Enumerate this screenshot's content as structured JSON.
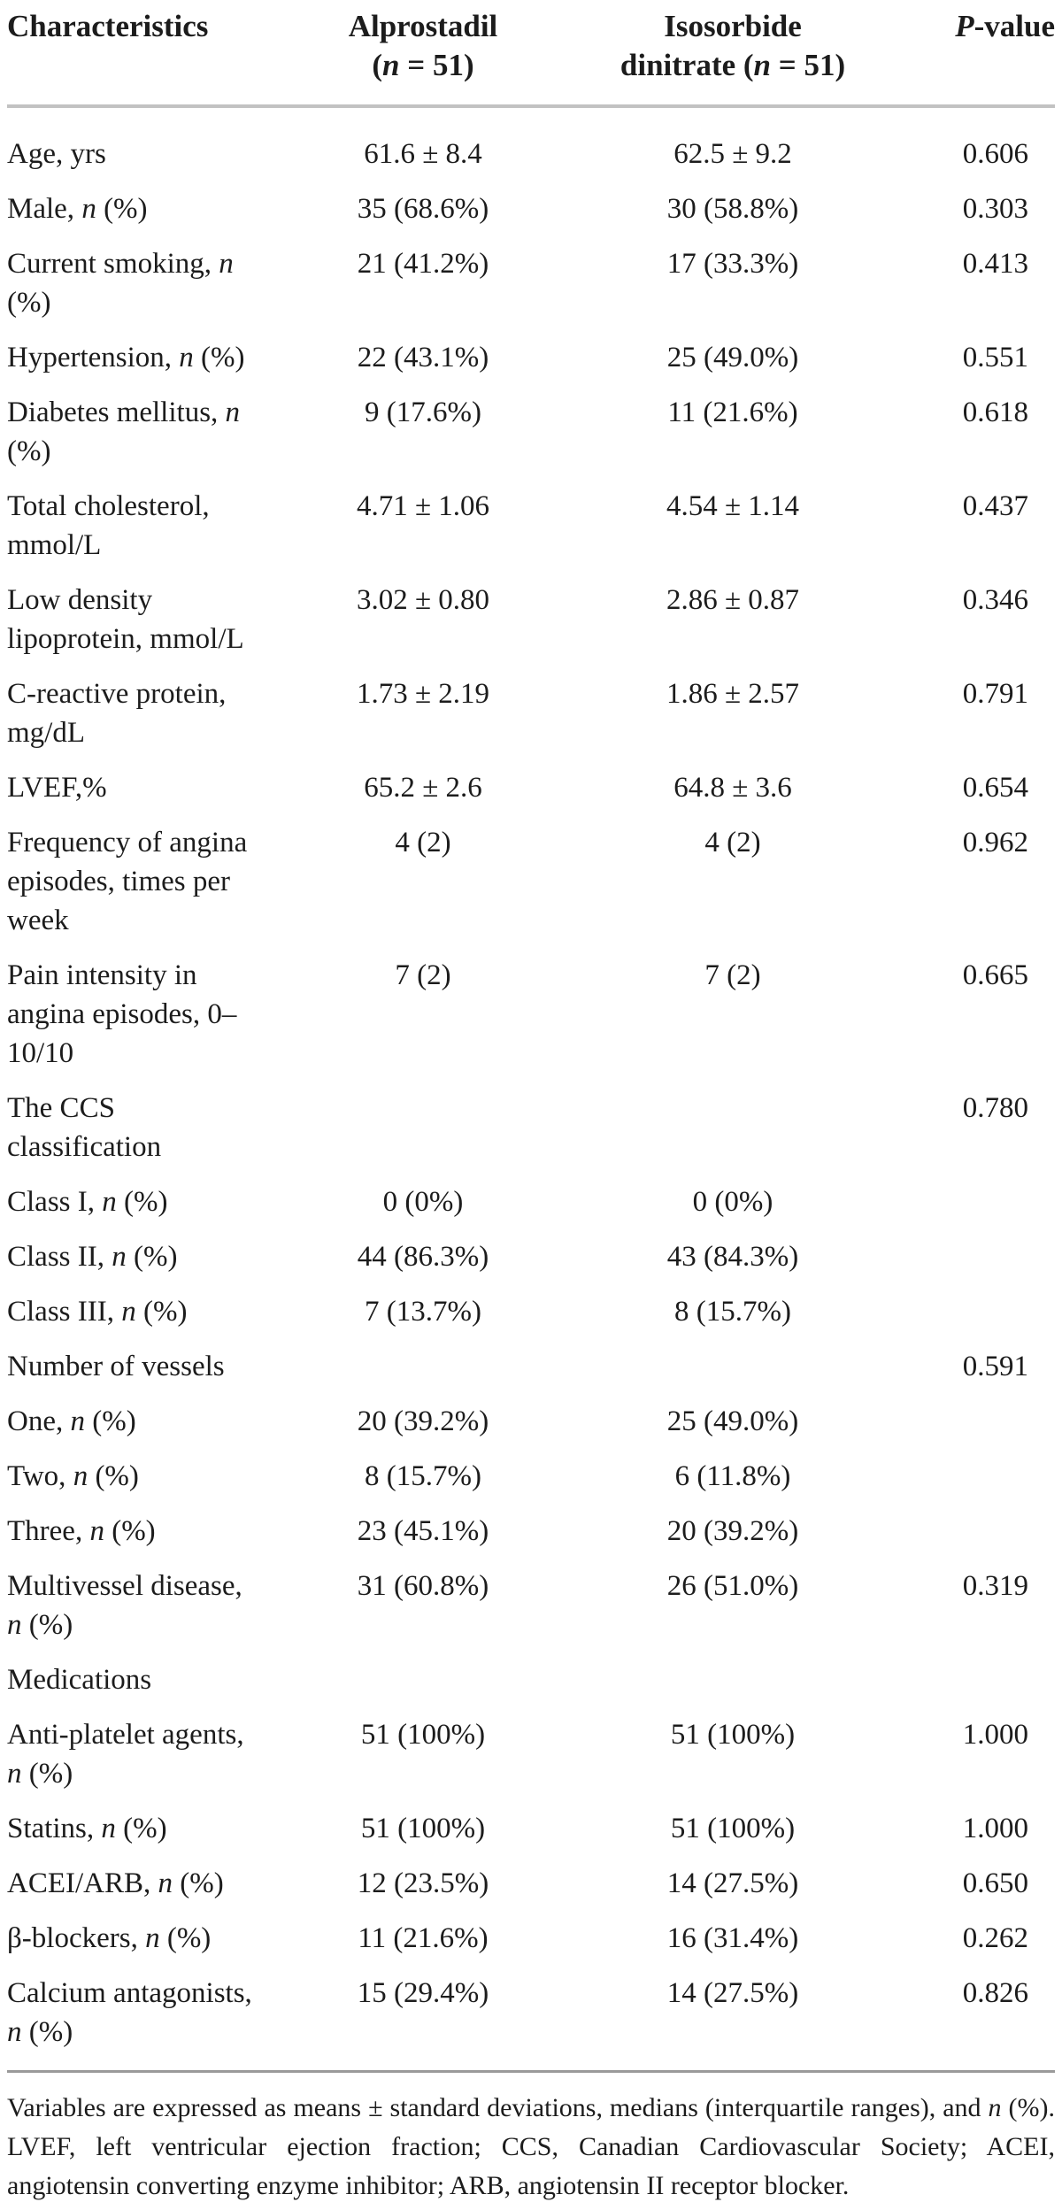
{
  "page": {
    "background": "#ffffff",
    "text_color": "#1c1c1c",
    "rule_color": "#9a9a9a"
  },
  "table": {
    "header": {
      "characteristics": "Characteristics",
      "group1_line1": "Alprostadil",
      "group1_line2": "(*n* = 51)",
      "group2_line1": "Isosorbide",
      "group2_line2": "dinitrate (*n* = 51)",
      "p_value": "*P*-value"
    },
    "rows": [
      {
        "label": "Age, yrs",
        "alprostadil": "61.6 ± 8.4",
        "isosorbide": "62.5 ± 9.2",
        "p": "0.606"
      },
      {
        "label": "Male, *n* (%)",
        "alprostadil": "35 (68.6%)",
        "isosorbide": "30 (58.8%)",
        "p": "0.303"
      },
      {
        "label": "Current smoking, *n* (%)",
        "alprostadil": "21 (41.2%)",
        "isosorbide": "17 (33.3%)",
        "p": "0.413"
      },
      {
        "label": "Hypertension, *n* (%)",
        "alprostadil": "22 (43.1%)",
        "isosorbide": "25 (49.0%)",
        "p": "0.551"
      },
      {
        "label": "Diabetes mellitus, *n* (%)",
        "alprostadil": "9 (17.6%)",
        "isosorbide": "11 (21.6%)",
        "p": "0.618"
      },
      {
        "label": "Total cholesterol, mmol/L",
        "alprostadil": "4.71 ± 1.06",
        "isosorbide": "4.54 ± 1.14",
        "p": "0.437"
      },
      {
        "label": "Low density lipoprotein, mmol/L",
        "alprostadil": "3.02 ± 0.80",
        "isosorbide": "2.86 ± 0.87",
        "p": "0.346"
      },
      {
        "label": "C-reactive protein, mg/dL",
        "alprostadil": "1.73 ± 2.19",
        "isosorbide": "1.86 ± 2.57",
        "p": "0.791"
      },
      {
        "label": "LVEF,%",
        "alprostadil": "65.2 ± 2.6",
        "isosorbide": "64.8 ± 3.6",
        "p": "0.654"
      },
      {
        "label": "Frequency of angina episodes, times per week",
        "alprostadil": "4 (2)",
        "isosorbide": "4 (2)",
        "p": "0.962"
      },
      {
        "label": "Pain intensity in angina episodes, 0–10/10",
        "alprostadil": "7 (2)",
        "isosorbide": "7 (2)",
        "p": "0.665"
      },
      {
        "label": "The CCS classification",
        "alprostadil": "",
        "isosorbide": "",
        "p": "0.780"
      },
      {
        "label": "Class I, *n* (%)",
        "alprostadil": "0 (0%)",
        "isosorbide": "0 (0%)",
        "p": ""
      },
      {
        "label": "Class II, *n* (%)",
        "alprostadil": "44 (86.3%)",
        "isosorbide": "43 (84.3%)",
        "p": ""
      },
      {
        "label": "Class III, *n* (%)",
        "alprostadil": "7 (13.7%)",
        "isosorbide": "8 (15.7%)",
        "p": ""
      },
      {
        "label": "Number of vessels",
        "alprostadil": "",
        "isosorbide": "",
        "p": "0.591"
      },
      {
        "label": "One, *n* (%)",
        "alprostadil": "20 (39.2%)",
        "isosorbide": "25 (49.0%)",
        "p": ""
      },
      {
        "label": "Two, *n* (%)",
        "alprostadil": "8 (15.7%)",
        "isosorbide": "6 (11.8%)",
        "p": ""
      },
      {
        "label": "Three, *n* (%)",
        "alprostadil": "23 (45.1%)",
        "isosorbide": "20 (39.2%)",
        "p": ""
      },
      {
        "label": "Multivessel disease, *n* (%)",
        "alprostadil": "31 (60.8%)",
        "isosorbide": "26 (51.0%)",
        "p": "0.319"
      },
      {
        "label": "Medications",
        "alprostadil": "",
        "isosorbide": "",
        "p": ""
      },
      {
        "label": "Anti-platelet agents, *n* (%)",
        "alprostadil": "51 (100%)",
        "isosorbide": "51 (100%)",
        "p": "1.000"
      },
      {
        "label": "Statins, *n* (%)",
        "alprostadil": "51 (100%)",
        "isosorbide": "51 (100%)",
        "p": "1.000"
      },
      {
        "label": "ACEI/ARB, *n* (%)",
        "alprostadil": "12 (23.5%)",
        "isosorbide": "14 (27.5%)",
        "p": "0.650"
      },
      {
        "label": "β-blockers, *n* (%)",
        "alprostadil": "11 (21.6%)",
        "isosorbide": "16 (31.4%)",
        "p": "0.262"
      },
      {
        "label": "Calcium antagonists, *n* (%)",
        "alprostadil": "15 (29.4%)",
        "isosorbide": "14 (27.5%)",
        "p": "0.826"
      }
    ]
  },
  "footnote": "Variables are expressed as means ± standard deviations, medians (interquartile ranges), and *n* (%). LVEF, left ventricular ejection fraction; CCS, Canadian Cardiovascular Society; ACEI, angiotensin converting enzyme inhibitor; ARB, angiotensin II receptor blocker."
}
